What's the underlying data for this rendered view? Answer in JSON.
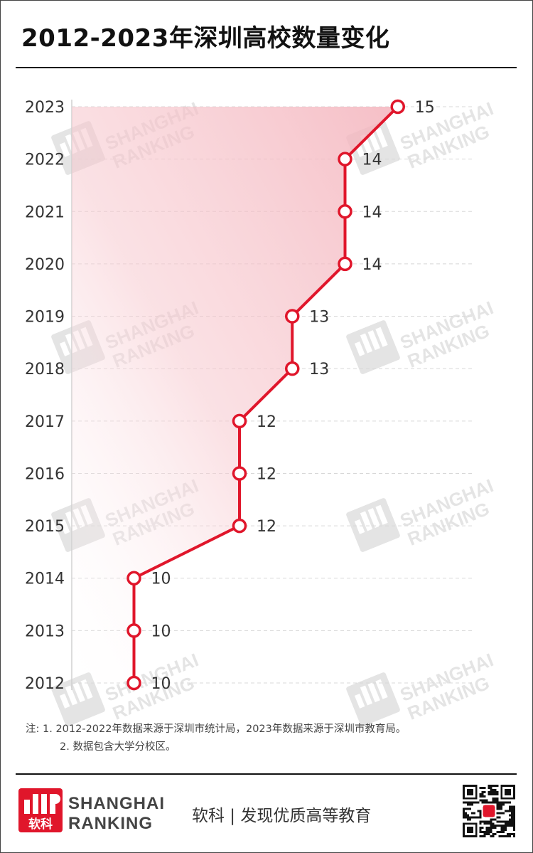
{
  "title": "2012-2023年深圳高校数量变化",
  "chart_data": {
    "type": "line",
    "orientation": "horizontal-values-vertical-categories",
    "categories": [
      "2012",
      "2013",
      "2014",
      "2015",
      "2016",
      "2017",
      "2018",
      "2019",
      "2020",
      "2021",
      "2022",
      "2023"
    ],
    "values": [
      10,
      10,
      10,
      12,
      12,
      12,
      13,
      13,
      14,
      14,
      14,
      15
    ],
    "title": "2012-2023年深圳高校数量变化",
    "xlabel": "",
    "ylabel": "",
    "xlim": [
      8,
      16
    ],
    "grid": true,
    "colors": {
      "line": "#e0162b",
      "fill": "#f7c6cc",
      "grid": "#d8d8d8"
    }
  },
  "notes": {
    "line1": "注:  1. 2012-2022年数据来源于深圳市统计局，2023年数据来源于深圳市教育局。",
    "line2": "2. 数据包含大学分校区。"
  },
  "footer": {
    "brand_line1": "SHANGHAI",
    "brand_line2": "RANKING",
    "slogan": "软科 | 发现优质高等教育",
    "logo_icon": "shanghai-ranking-logo-icon",
    "qr_icon": "qr-code-icon",
    "brand_color": "#e0162b"
  },
  "watermark": {
    "line1": "SHANGHAI",
    "line2": "RANKING"
  }
}
